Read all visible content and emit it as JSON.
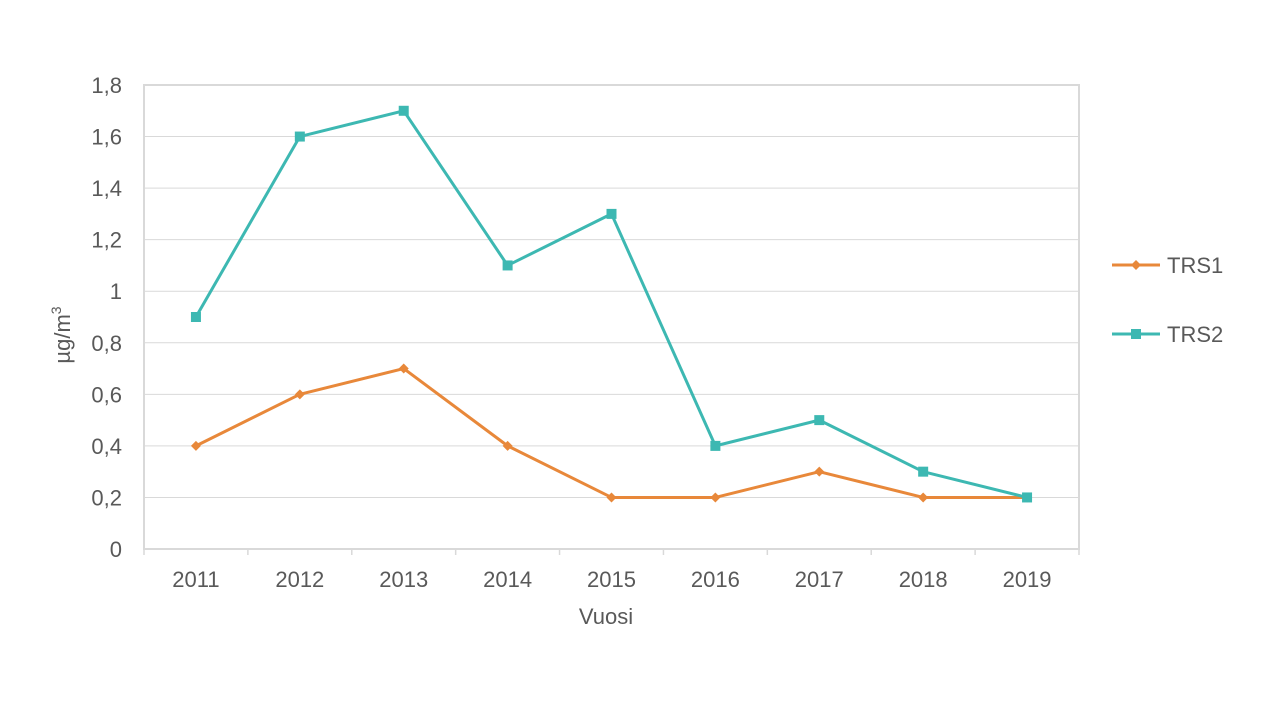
{
  "chart_data": {
    "type": "line",
    "title": "",
    "xlabel": "Vuosi",
    "ylabel": "µg/m",
    "ylabel_superscript": "3",
    "categories": [
      "2011",
      "2012",
      "2013",
      "2014",
      "2015",
      "2016",
      "2017",
      "2018",
      "2019"
    ],
    "ylim": [
      0,
      1.8
    ],
    "yticks": [
      0,
      0.2,
      0.4,
      0.6,
      0.8,
      1,
      1.2,
      1.4,
      1.6,
      1.8
    ],
    "ytick_labels": [
      "0",
      "0,2",
      "0,4",
      "0,6",
      "0,8",
      "1",
      "1,2",
      "1,4",
      "1,6",
      "1,8"
    ],
    "grid": true,
    "legend_position": "right",
    "series": [
      {
        "name": "TRS1",
        "color": "#E8883A",
        "marker": "diamond",
        "values": [
          0.4,
          0.6,
          0.7,
          0.4,
          0.2,
          0.2,
          0.3,
          0.2,
          0.2
        ]
      },
      {
        "name": "TRS2",
        "color": "#3DB8B2",
        "marker": "square",
        "values": [
          0.9,
          1.6,
          1.7,
          1.1,
          1.3,
          0.4,
          0.5,
          0.3,
          0.2
        ]
      }
    ]
  }
}
